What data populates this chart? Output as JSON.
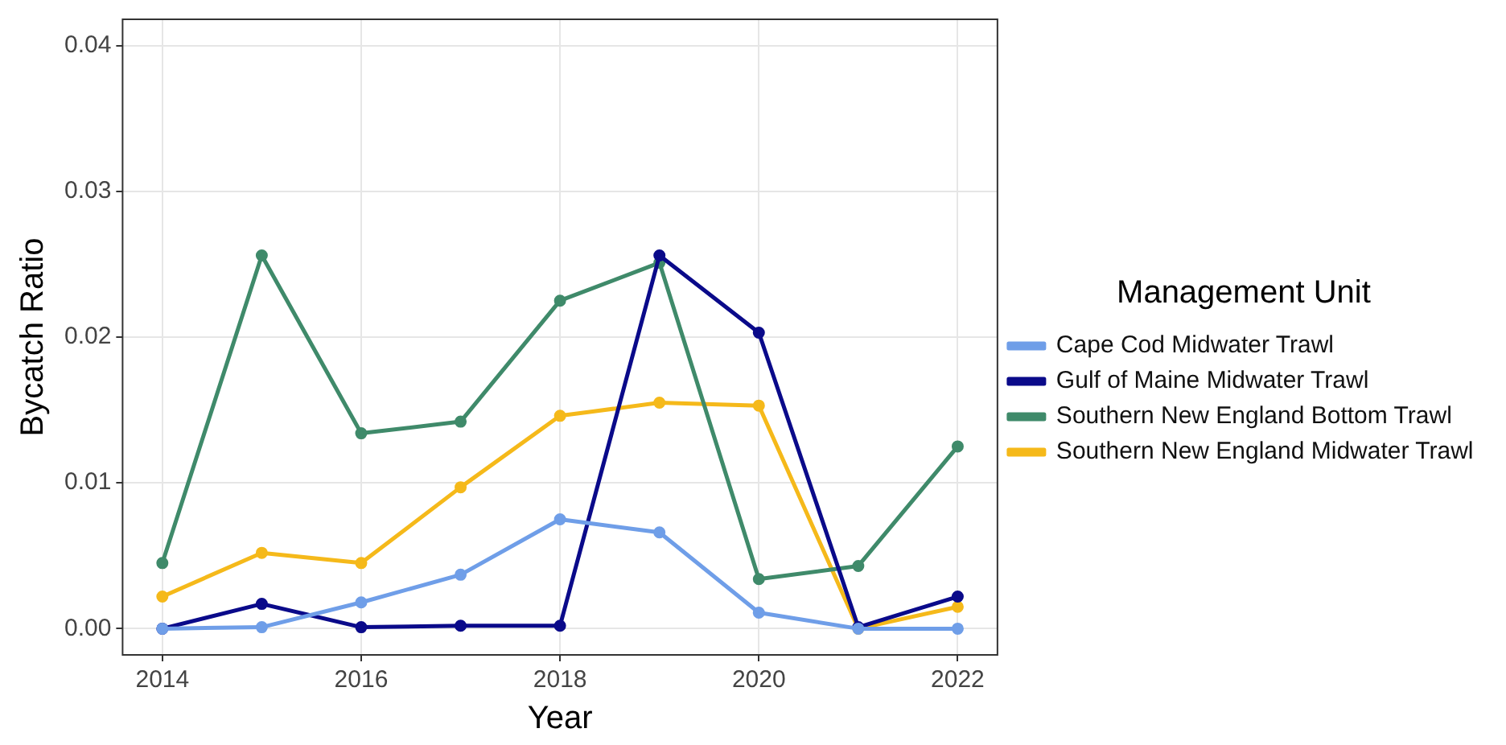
{
  "chart_data": {
    "type": "line",
    "xlabel": "Year",
    "ylabel": "Bycatch Ratio",
    "legend_title": "Management Unit",
    "x": [
      2014,
      2015,
      2016,
      2017,
      2018,
      2019,
      2020,
      2021,
      2022
    ],
    "xlim": [
      2013.6,
      2022.4
    ],
    "xticks": [
      2014,
      2016,
      2018,
      2020,
      2022
    ],
    "ylim": [
      -0.0018,
      0.0418
    ],
    "yticks": [
      {
        "value": 0,
        "label": "0.00"
      },
      {
        "value": 0.01,
        "label": "0.01"
      },
      {
        "value": 0.02,
        "label": "0.02"
      },
      {
        "value": 0.03,
        "label": "0.03"
      },
      {
        "value": 0.04,
        "label": "0.04"
      }
    ],
    "grid": true,
    "legend": "right",
    "marker": "circle",
    "line_style": "solid",
    "series": [
      {
        "name": "Cape Cod Midwater Trawl",
        "color": "#6f9ee8",
        "values": [
          0,
          0.0001,
          0.0018,
          0.0037,
          0.0075,
          0.0066,
          0.0011,
          0,
          0
        ]
      },
      {
        "name": "Gulf of Maine Midwater Trawl",
        "color": "#0a0a8a",
        "values": [
          0,
          0.0017,
          0.0001,
          0.0002,
          0.0002,
          0.0256,
          0.0203,
          0.0001,
          0.0022
        ]
      },
      {
        "name": "Southern New England Bottom Trawl",
        "color": "#3f8a6a",
        "values": [
          0.0045,
          0.0256,
          0.0134,
          0.0142,
          0.0225,
          0.0251,
          0.0034,
          0.0043,
          0.0125
        ]
      },
      {
        "name": "Southern New England Midwater Trawl",
        "color": "#f5b91a",
        "values": [
          0.0022,
          0.0052,
          0.0045,
          0.0097,
          0.0146,
          0.0155,
          0.0153,
          0,
          0.0015
        ]
      }
    ]
  }
}
